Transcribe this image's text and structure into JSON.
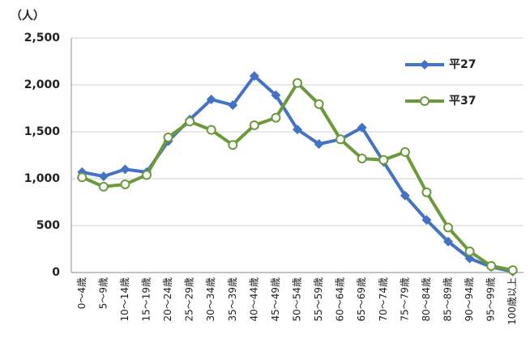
{
  "chart_data": {
    "type": "line",
    "y_label": "（人）",
    "categories": [
      "0～4歳",
      "5～9歳",
      "10～14歳",
      "15～19歳",
      "20～24歳",
      "25～29歳",
      "30～34歳",
      "35～39歳",
      "40～44歳",
      "45～49歳",
      "50～54歳",
      "55～59歳",
      "60～64歳",
      "65～69歳",
      "70～74歳",
      "75～79歳",
      "80～84歳",
      "85～89歳",
      "90～94歳",
      "95～99歳",
      "100歳以上"
    ],
    "series": [
      {
        "name": "平27",
        "color": "#4472c4",
        "marker": "diamond",
        "values": [
          1070,
          1025,
          1100,
          1070,
          1400,
          1630,
          1845,
          1785,
          2095,
          1890,
          1525,
          1370,
          1420,
          1545,
          1180,
          820,
          560,
          330,
          150,
          60,
          10
        ]
      },
      {
        "name": "平37",
        "color": "#6b9a3a",
        "marker": "circle",
        "values": [
          1015,
          915,
          940,
          1040,
          1440,
          1610,
          1520,
          1360,
          1570,
          1650,
          2020,
          1795,
          1420,
          1215,
          1200,
          1285,
          855,
          480,
          225,
          70,
          25
        ]
      }
    ],
    "ylim": [
      0,
      2500
    ],
    "yticks": [
      0,
      500,
      {
        "value": 1000,
        "label": "1,000"
      },
      {
        "value": 1500,
        "label": "1,500"
      },
      {
        "value": 2000,
        "label": "2,000"
      },
      {
        "value": 2500,
        "label": "2,500"
      }
    ],
    "grid": true,
    "legend": "top-right"
  }
}
